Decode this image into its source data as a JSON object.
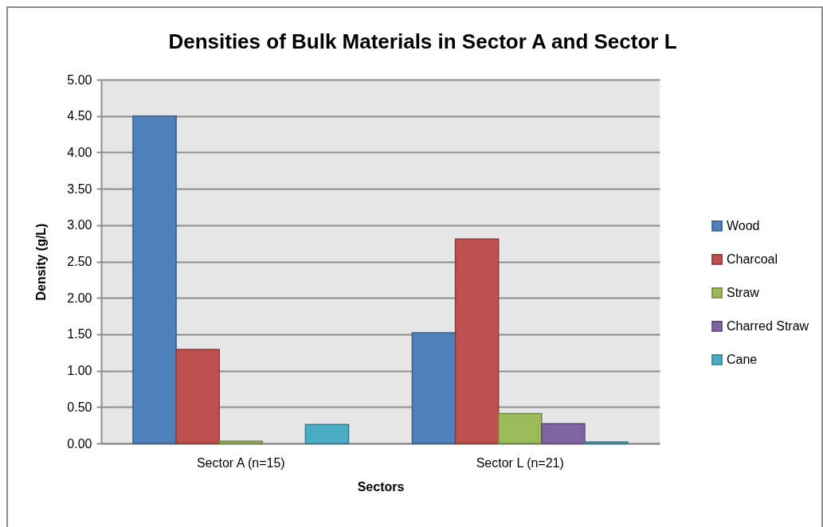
{
  "chart_data": {
    "type": "bar",
    "title": "Densities of Bulk Materials in Sector A and Sector L",
    "xlabel": "Sectors",
    "ylabel": "Density (g/L)",
    "categories": [
      "Sector A (n=15)",
      "Sector L (n=21)"
    ],
    "series": [
      {
        "name": "Wood",
        "color": "#4f81bd",
        "values": [
          4.5,
          1.52
        ]
      },
      {
        "name": "Charcoal",
        "color": "#c0504d",
        "values": [
          1.29,
          2.81
        ]
      },
      {
        "name": "Straw",
        "color": "#9bbb59",
        "values": [
          0.03,
          0.41
        ]
      },
      {
        "name": "Charred Straw",
        "color": "#8064a2",
        "values": [
          null,
          0.27
        ]
      },
      {
        "name": "Cane",
        "color": "#4bacc6",
        "values": [
          0.26,
          0.02
        ]
      }
    ],
    "ylim": [
      0,
      5
    ],
    "yticks": [
      {
        "value": 0,
        "label": "0.00"
      },
      {
        "value": 0.5,
        "label": "0.50"
      },
      {
        "value": 1,
        "label": "1.00"
      },
      {
        "value": 1.5,
        "label": "1.50"
      },
      {
        "value": 2,
        "label": "2.00"
      },
      {
        "value": 2.5,
        "label": "2.50"
      },
      {
        "value": 3,
        "label": "3.00"
      },
      {
        "value": 3.5,
        "label": "3.50"
      },
      {
        "value": 4,
        "label": "4.00"
      },
      {
        "value": 4.5,
        "label": "4.50"
      },
      {
        "value": 5,
        "label": "5.00"
      }
    ],
    "grid": "y",
    "legend": "right"
  }
}
